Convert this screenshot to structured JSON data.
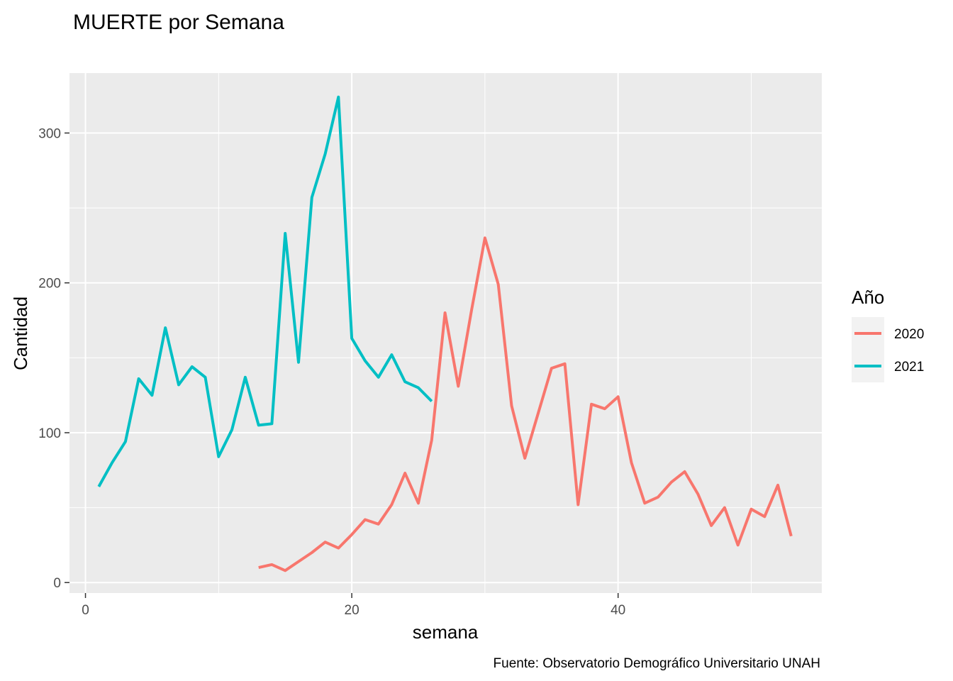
{
  "chart_data": {
    "type": "line",
    "title": "MUERTE por Semana",
    "xlabel": "semana",
    "ylabel": "Cantidad",
    "caption": "Fuente: Observatorio Demográfico Universitario UNAH",
    "xlim": [
      -1.2,
      55.3
    ],
    "ylim": [
      -7,
      340
    ],
    "x_ticks": [
      0,
      20,
      40
    ],
    "y_ticks": [
      0,
      100,
      200,
      300
    ],
    "x_minor": [
      10,
      30,
      50
    ],
    "y_minor": [
      50,
      150,
      250
    ],
    "grid": true,
    "panel_background": "#ebebeb",
    "legend": {
      "title": "Año",
      "position": "right"
    },
    "series": [
      {
        "name": "2020",
        "color": "#f8766d",
        "x": [
          13,
          14,
          15,
          16,
          17,
          18,
          19,
          20,
          21,
          22,
          23,
          24,
          25,
          26,
          27,
          28,
          29,
          30,
          31,
          32,
          33,
          34,
          35,
          36,
          37,
          38,
          39,
          40,
          41,
          42,
          43,
          44,
          45,
          46,
          47,
          48,
          49,
          50,
          51,
          52,
          53
        ],
        "y": [
          10,
          12,
          8,
          14,
          20,
          27,
          23,
          32,
          42,
          39,
          52,
          73,
          53,
          95,
          180,
          131,
          182,
          230,
          199,
          118,
          83,
          113,
          143,
          146,
          52,
          119,
          116,
          124,
          80,
          53,
          57,
          67,
          74,
          59,
          38,
          50,
          25,
          49,
          44,
          65,
          31
        ]
      },
      {
        "name": "2021",
        "color": "#00bfc4",
        "x": [
          1,
          2,
          3,
          4,
          5,
          6,
          7,
          8,
          9,
          10,
          11,
          12,
          13,
          14,
          15,
          16,
          17,
          18,
          19,
          20,
          21,
          22,
          23,
          24,
          25,
          26
        ],
        "y": [
          64,
          80,
          94,
          136,
          125,
          170,
          132,
          144,
          137,
          84,
          102,
          137,
          105,
          106,
          233,
          147,
          257,
          286,
          324,
          163,
          148,
          137,
          152,
          134,
          130,
          121
        ]
      }
    ]
  }
}
